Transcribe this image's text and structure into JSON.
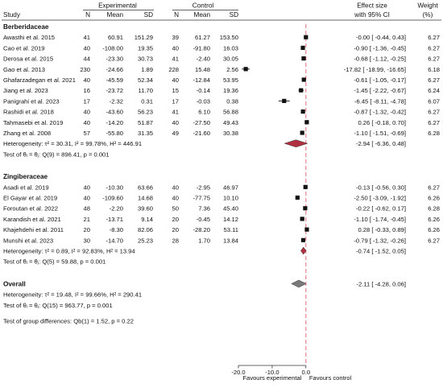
{
  "header": {
    "group_exp": "Experimental",
    "group_ctl": "Control",
    "effect_l1": "Effect size",
    "effect_l2": "with 95% CI",
    "weight_l1": "Weight",
    "weight_l2": "(%)",
    "cols": {
      "study": "Study",
      "n1": "N",
      "mean1": "Mean",
      "sd1": "SD",
      "n2": "N",
      "mean2": "Mean",
      "sd2": "SD"
    }
  },
  "subgroups": [
    {
      "name": "Berberidaceae",
      "studies": [
        {
          "label": "Awasthi et al. 2015",
          "n1": "41",
          "m1": "60.91",
          "sd1": "151.29",
          "n2": "39",
          "m2": "61.27",
          "sd2": "153.50",
          "es": -0.0,
          "lo": -0.44,
          "hi": 0.43,
          "ci": "-0.00 [  -0.44,    0.43]",
          "w": "6.27"
        },
        {
          "label": "Cao et al. 2019",
          "n1": "40",
          "m1": "-108.00",
          "sd1": "19.35",
          "n2": "40",
          "m2": "-91.80",
          "sd2": "16.03",
          "es": -0.9,
          "lo": -1.36,
          "hi": -0.45,
          "ci": "-0.90 [  -1.36,   -0.45]",
          "w": "6.27"
        },
        {
          "label": "Derosa et al. 2015",
          "n1": "44",
          "m1": "-23.30",
          "sd1": "30.73",
          "n2": "41",
          "m2": "-2.40",
          "sd2": "30.05",
          "es": -0.68,
          "lo": -1.12,
          "hi": -0.25,
          "ci": "-0.68 [  -1.12,   -0.25]",
          "w": "6.27"
        },
        {
          "label": "Gao et al. 2013",
          "n1": "230",
          "m1": "-24.66",
          "sd1": "1.89",
          "n2": "228",
          "m2": "15.48",
          "sd2": "2.56",
          "es": -17.82,
          "lo": -18.99,
          "hi": -16.65,
          "ci": "-17.82 [ -18.99,  -16.65]",
          "w": "6.18"
        },
        {
          "label": "Ghafarzadegan et al. 2021",
          "n1": "40",
          "m1": "-45.59",
          "sd1": "52.34",
          "n2": "40",
          "m2": "-12.84",
          "sd2": "53.95",
          "es": -0.61,
          "lo": -1.05,
          "hi": -0.17,
          "ci": "-0.61 [  -1.05,   -0.17]",
          "w": "6.27"
        },
        {
          "label": "Jiang et al. 2023",
          "n1": "16",
          "m1": "-23.72",
          "sd1": "11.70",
          "n2": "15",
          "m2": "-0.14",
          "sd2": "19.36",
          "es": -1.45,
          "lo": -2.22,
          "hi": -0.67,
          "ci": "-1.45 [  -2.22,   -0.67]",
          "w": "6.24"
        },
        {
          "label": "Panigrahi et al. 2023",
          "n1": "17",
          "m1": "-2.32",
          "sd1": "0.31",
          "n2": "17",
          "m2": "-0.03",
          "sd2": "0.38",
          "es": -6.45,
          "lo": -8.11,
          "hi": -4.78,
          "ci": "-6.45 [  -8.11,   -4.78]",
          "w": "6.07"
        },
        {
          "label": "Rashidi et al. 2018",
          "n1": "40",
          "m1": "-43.60",
          "sd1": "56.23",
          "n2": "41",
          "m2": "6.10",
          "sd2": "56.88",
          "es": -0.87,
          "lo": -1.32,
          "hi": -0.42,
          "ci": "-0.87 [  -1.32,   -0.42]",
          "w": "6.27"
        },
        {
          "label": "Tahmasebi et al. 2019",
          "n1": "40",
          "m1": "-14.20",
          "sd1": "51.87",
          "n2": "40",
          "m2": "-27.50",
          "sd2": "49.43",
          "es": 0.26,
          "lo": -0.18,
          "hi": 0.7,
          "ci": "0.26 [  -0.18,    0.70]",
          "w": "6.27"
        },
        {
          "label": "Zhang et al. 2008",
          "n1": "57",
          "m1": "-55.80",
          "sd1": "31.35",
          "n2": "49",
          "m2": "-21.60",
          "sd2": "30.38",
          "es": -1.1,
          "lo": -1.51,
          "hi": -0.69,
          "ci": "-1.10 [  -1.51,   -0.69]",
          "w": "6.28"
        }
      ],
      "pooled": {
        "es": -2.94,
        "lo": -6.36,
        "hi": 0.48,
        "ci": "-2.94 [  -6.36,    0.48]"
      },
      "het_line": "Heterogeneity: τ² = 30.31, I² = 99.78%, H² = 446.91",
      "test_line": "Test of θᵢ = θⱼ: Q(9) = 896.41, p = 0.001"
    },
    {
      "name": "Zingiberaceae",
      "studies": [
        {
          "label": "Asadi et al. 2019",
          "n1": "40",
          "m1": "-10.30",
          "sd1": "63.66",
          "n2": "40",
          "m2": "-2.95",
          "sd2": "46.97",
          "es": -0.13,
          "lo": -0.56,
          "hi": 0.3,
          "ci": "-0.13 [  -0.56,    0.30]",
          "w": "6.27"
        },
        {
          "label": "El Gayar et al. 2019",
          "n1": "40",
          "m1": "-109.60",
          "sd1": "14.68",
          "n2": "40",
          "m2": "-77.75",
          "sd2": "10.10",
          "es": -2.5,
          "lo": -3.09,
          "hi": -1.92,
          "ci": "-2.50 [  -3.09,   -1.92]",
          "w": "6.26"
        },
        {
          "label": "Foroutan et al. 2022",
          "n1": "48",
          "m1": "-2.20",
          "sd1": "39.60",
          "n2": "50",
          "m2": "7.36",
          "sd2": "45.40",
          "es": -0.22,
          "lo": -0.62,
          "hi": 0.17,
          "ci": "-0.22 [  -0.62,    0.17]",
          "w": "6.28"
        },
        {
          "label": "Karandish et al. 2021",
          "n1": "21",
          "m1": "-13.71",
          "sd1": "9.14",
          "n2": "20",
          "m2": "-0.45",
          "sd2": "14.12",
          "es": -1.1,
          "lo": -1.74,
          "hi": -0.45,
          "ci": "-1.10 [  -1.74,   -0.45]",
          "w": "6.26"
        },
        {
          "label": "Khajehdehi et al. 2011",
          "n1": "20",
          "m1": "-8.30",
          "sd1": "82.06",
          "n2": "20",
          "m2": "-28.20",
          "sd2": "53.11",
          "es": 0.28,
          "lo": -0.33,
          "hi": 0.89,
          "ci": "0.28 [  -0.33,    0.89]",
          "w": "6.26"
        },
        {
          "label": "Munshi et al. 2023",
          "n1": "30",
          "m1": "-14.70",
          "sd1": "25.23",
          "n2": "28",
          "m2": "1.70",
          "sd2": "13.84",
          "es": -0.79,
          "lo": -1.32,
          "hi": -0.26,
          "ci": "-0.79 [  -1.32,   -0.26]",
          "w": "6.27"
        }
      ],
      "pooled": {
        "es": -0.74,
        "lo": -1.52,
        "hi": 0.05,
        "ci": "-0.74 [  -1.52,    0.05]"
      },
      "het_line": "Heterogeneity: τ² = 0.89, I² = 92.83%, H² = 13.94",
      "test_line": "Test of θᵢ = θⱼ: Q(5) = 59.88, p = 0.001"
    }
  ],
  "overall": {
    "name": "Overall",
    "es": -2.11,
    "lo": -4.28,
    "hi": 0.06,
    "ci": "-2.11 [  -4.28,    0.06]",
    "het_line": "Heterogeneity: τ² = 19.48, I² = 99.66%, H² = 290.41",
    "test_line": "Test of θᵢ = θⱼ: Q(15) = 963.77, p = 0.001",
    "group_diff": "Test of group differences: Qb(1) = 1.52, p = 0.22"
  },
  "axis": {
    "xlim": [
      -20.0,
      1.0
    ],
    "ticks": [
      -20.0,
      -10.0,
      0.0
    ],
    "tick_labels": [
      "-20.0",
      "-10.0",
      "0.0"
    ],
    "left_label": "Favours experimental",
    "right_label": "Favours control"
  },
  "colors": {
    "diamond_sub": "#b03040",
    "diamond_overall": "#7a7a7a",
    "ref_line": "#e36a78",
    "box": "#111111"
  },
  "chart_data": {
    "type": "forest",
    "x_label_left": "Favours experimental",
    "x_label_right": "Favours control",
    "xlim": [
      -20.0,
      1.0
    ],
    "ticks": [
      -20.0,
      -10.0,
      0.0
    ],
    "reference_line": 0,
    "series": [
      {
        "name": "Berberidaceae",
        "studies": [
          "Awasthi et al. 2015",
          "Cao et al. 2019",
          "Derosa et al. 2015",
          "Gao et al. 2013",
          "Ghafarzadegan et al. 2021",
          "Jiang et al. 2023",
          "Panigrahi et al. 2023",
          "Rashidi et al. 2018",
          "Tahmasebi et al. 2019",
          "Zhang et al. 2008"
        ],
        "effect": [
          -0.0,
          -0.9,
          -0.68,
          -17.82,
          -0.61,
          -1.45,
          -6.45,
          -0.87,
          0.26,
          -1.1
        ],
        "pooled": -2.94
      },
      {
        "name": "Zingiberaceae",
        "studies": [
          "Asadi et al. 2019",
          "El Gayar et al. 2019",
          "Foroutan et al. 2022",
          "Karandish et al. 2021",
          "Khajehdehi et al. 2011",
          "Munshi et al. 2023"
        ],
        "effect": [
          -0.13,
          -2.5,
          -0.22,
          -1.1,
          0.28,
          -0.79
        ],
        "pooled": -0.74
      },
      {
        "name": "Overall",
        "effect": [
          -2.11
        ],
        "pooled": -2.11
      }
    ]
  }
}
